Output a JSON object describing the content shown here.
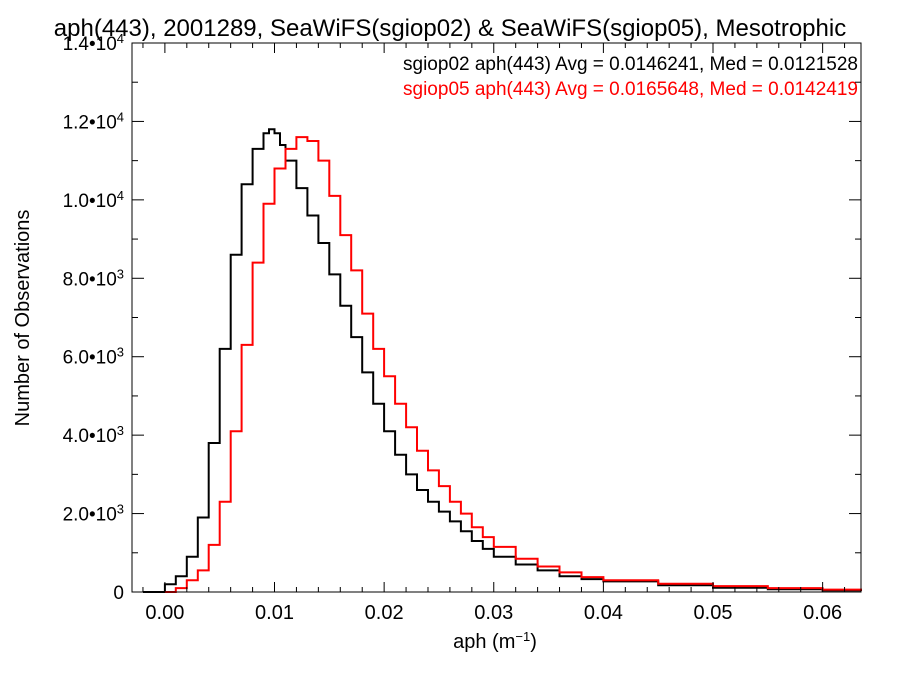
{
  "chart_data": {
    "type": "line",
    "title": "aph(443), 2001289, SeaWiFS(sgiop02) & SeaWiFS(sgiop05), Mesotrophic",
    "xlabel": "aph (m⁻¹)",
    "ylabel": "Number of Observations",
    "xlim": [
      -0.003,
      0.0635
    ],
    "ylim": [
      0,
      14000
    ],
    "xticks": [
      {
        "v": 0.0,
        "label": "0.00"
      },
      {
        "v": 0.01,
        "label": "0.01"
      },
      {
        "v": 0.02,
        "label": "0.02"
      },
      {
        "v": 0.03,
        "label": "0.03"
      },
      {
        "v": 0.04,
        "label": "0.04"
      },
      {
        "v": 0.05,
        "label": "0.05"
      },
      {
        "v": 0.06,
        "label": "0.06"
      }
    ],
    "yticks": [
      {
        "v": 0,
        "mant": "0",
        "exp": ""
      },
      {
        "v": 2000,
        "mant": "2.0•10",
        "exp": "3"
      },
      {
        "v": 4000,
        "mant": "4.0•10",
        "exp": "3"
      },
      {
        "v": 6000,
        "mant": "6.0•10",
        "exp": "3"
      },
      {
        "v": 8000,
        "mant": "8.0•10",
        "exp": "3"
      },
      {
        "v": 10000,
        "mant": "1.0•10",
        "exp": "4"
      },
      {
        "v": 12000,
        "mant": "1.2•10",
        "exp": "4"
      },
      {
        "v": 14000,
        "mant": "1.4•10",
        "exp": "4"
      }
    ],
    "grid": false,
    "legend": "top-right",
    "series": [
      {
        "name": "sgiop02 aph(443) Avg = 0.0146241, Med = 0.0121528",
        "color": "#000000",
        "x": [
          -0.002,
          0.0,
          0.001,
          0.002,
          0.003,
          0.004,
          0.005,
          0.006,
          0.007,
          0.008,
          0.009,
          0.0095,
          0.01,
          0.0105,
          0.011,
          0.012,
          0.013,
          0.014,
          0.015,
          0.016,
          0.017,
          0.018,
          0.019,
          0.02,
          0.021,
          0.022,
          0.023,
          0.024,
          0.025,
          0.026,
          0.027,
          0.028,
          0.029,
          0.03,
          0.032,
          0.034,
          0.036,
          0.038,
          0.04,
          0.045,
          0.05,
          0.055,
          0.06,
          0.0635
        ],
        "y": [
          0,
          200,
          400,
          900,
          1900,
          3800,
          6200,
          8600,
          10400,
          11300,
          11700,
          11800,
          11700,
          11400,
          11000,
          10300,
          9600,
          8900,
          8100,
          7300,
          6500,
          5600,
          4800,
          4100,
          3500,
          3000,
          2600,
          2300,
          2050,
          1800,
          1550,
          1300,
          1100,
          900,
          700,
          550,
          400,
          330,
          270,
          170,
          110,
          70,
          40,
          25
        ]
      },
      {
        "name": "sgiop05 aph(443) Avg = 0.0165648, Med = 0.0142419",
        "color": "#ff0000",
        "x": [
          0.0,
          0.001,
          0.002,
          0.003,
          0.004,
          0.005,
          0.006,
          0.007,
          0.008,
          0.009,
          0.01,
          0.011,
          0.012,
          0.013,
          0.014,
          0.015,
          0.016,
          0.017,
          0.018,
          0.019,
          0.02,
          0.021,
          0.022,
          0.023,
          0.024,
          0.025,
          0.026,
          0.027,
          0.028,
          0.029,
          0.03,
          0.032,
          0.034,
          0.036,
          0.038,
          0.04,
          0.045,
          0.05,
          0.055,
          0.06,
          0.0635
        ],
        "y": [
          0,
          100,
          300,
          550,
          1200,
          2300,
          4100,
          6300,
          8400,
          9900,
          10800,
          11300,
          11600,
          11500,
          11000,
          10100,
          9100,
          8200,
          7100,
          6200,
          5500,
          4800,
          4200,
          3600,
          3100,
          2700,
          2300,
          2000,
          1650,
          1400,
          1150,
          850,
          650,
          500,
          380,
          300,
          210,
          150,
          100,
          60,
          35
        ]
      }
    ]
  }
}
